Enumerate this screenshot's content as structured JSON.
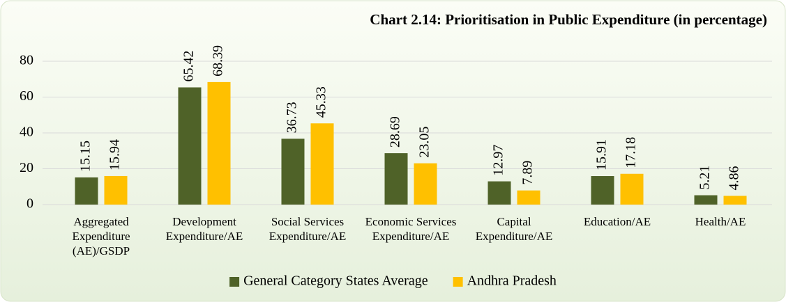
{
  "chart_data": {
    "type": "bar",
    "title": "Chart 2.14: Prioritisation in Public Expenditure (in percentage)",
    "categories": [
      "Aggregated Expenditure (AE)/GSDP",
      "Development Expenditure/AE",
      "Social Services Expenditure/AE",
      "Economic Services Expenditure/AE",
      "Capital Expenditure/AE",
      "Education/AE",
      "Health/AE"
    ],
    "series": [
      {
        "name": "General Category States Average",
        "color": "#4f6228",
        "values": [
          15.15,
          65.42,
          36.73,
          28.69,
          12.97,
          15.91,
          5.21
        ]
      },
      {
        "name": "Andhra Pradesh",
        "color": "#ffc000",
        "values": [
          15.94,
          68.39,
          45.33,
          23.05,
          7.89,
          17.18,
          4.86
        ]
      }
    ],
    "ylim": [
      0,
      80
    ],
    "yticks": [
      0,
      20,
      40,
      60,
      80
    ],
    "grid": true,
    "legend": "bottom"
  }
}
